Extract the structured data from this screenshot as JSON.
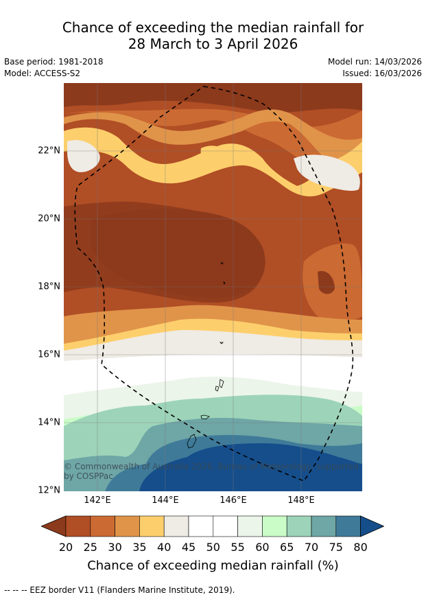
{
  "title_line1": "Chance of exceeding the median rainfall for",
  "title_line2": "28 March to 3 April 2026",
  "base_period": "Base period: 1981-2018",
  "model": "Model: ACCESS-S2",
  "model_run": "Model run: 14/03/2026",
  "issued": "Issued: 16/03/2026",
  "x_ticks": [
    "142°E",
    "144°E",
    "146°E",
    "148°E"
  ],
  "y_ticks": [
    "22°N",
    "20°N",
    "18°N",
    "16°N",
    "14°N",
    "12°N"
  ],
  "copyright": "© Commonwealth of Australia 2026, Bureau of Meteorology, supported by COSPPac",
  "colorbar": {
    "labels": [
      "20",
      "25",
      "30",
      "35",
      "40",
      "45",
      "50",
      "55",
      "60",
      "65",
      "70",
      "75",
      "80"
    ],
    "colors": [
      "#8c3a1c",
      "#b04e25",
      "#cb6a32",
      "#e0944a",
      "#fdcf6c",
      "#efebe5",
      "#ffffff",
      "#ffffff",
      "#ecf5ea",
      "#cafcc8",
      "#9dd4b9",
      "#6fa6a6",
      "#3f7a99",
      "#154e8b",
      "#0d4189"
    ],
    "title": "Chance of exceeding median rainfall (%)"
  },
  "footnote": "--  --  -- EEZ border V11 (Flanders Marine Institute, 2019)."
}
